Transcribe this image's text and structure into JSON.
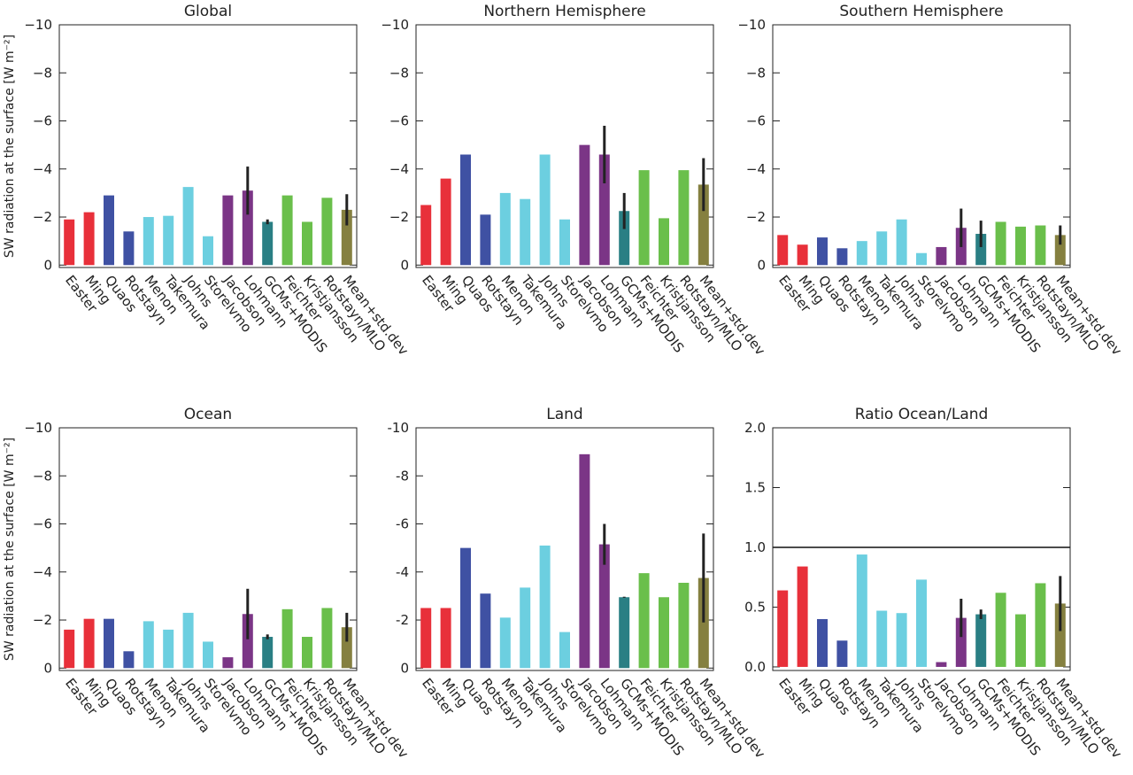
{
  "chart_data": [
    {
      "type": "bar",
      "title": "Global",
      "ylabel": "SW radiation at the surface [W m⁻²]",
      "categories": [
        "Easter",
        "Ming",
        "Quaos",
        "Rotstayn",
        "Menon",
        "Takemura",
        "Johns",
        "Storelvmo",
        "Jacobson",
        "Lohmann",
        "GCMs+MODIS",
        "Feichter",
        "Kristjansson",
        "Rotstayn/MLO",
        "Mean+std.dev"
      ],
      "values": [
        -1.9,
        -2.2,
        -2.9,
        -1.4,
        -2.0,
        -2.05,
        -3.25,
        -1.2,
        -2.9,
        -3.1,
        -1.8,
        -2.9,
        -1.8,
        -2.8,
        -2.3
      ],
      "errors": [
        null,
        null,
        null,
        null,
        null,
        null,
        null,
        null,
        null,
        1.0,
        0.1,
        null,
        null,
        null,
        0.65
      ],
      "colors": [
        "#e8303a",
        "#e8303a",
        "#3f51a3",
        "#3f51a3",
        "#6ccfe0",
        "#6ccfe0",
        "#6ccfe0",
        "#6ccfe0",
        "#7b3586",
        "#7b3586",
        "#2a7f84",
        "#6abf4b",
        "#6abf4b",
        "#6abf4b",
        "#858040"
      ],
      "ylim": [
        0.1,
        -10
      ],
      "yticks": [
        {
          "value": -10,
          "label": "−10"
        },
        {
          "value": -8,
          "label": "−8"
        },
        {
          "value": -6,
          "label": "−6"
        },
        {
          "value": -4,
          "label": "−4"
        },
        {
          "value": -2,
          "label": "−2"
        },
        0
      ]
    },
    {
      "type": "bar",
      "title": "Northern Hemisphere",
      "categories": [
        "Easter",
        "Ming",
        "Quaos",
        "Rotstayn",
        "Menon",
        "Takemura",
        "Johns",
        "Storelvmo",
        "Jacobson",
        "Lohmann",
        "GCMs+MODIS",
        "Feichter",
        "Kristjansson",
        "Rotstayn/MLO",
        "Mean+std.dev"
      ],
      "values": [
        -2.5,
        -3.6,
        -4.6,
        -2.1,
        -3.0,
        -2.75,
        -4.6,
        -1.9,
        -5.0,
        -4.6,
        -2.25,
        -3.95,
        -1.95,
        -3.95,
        -3.35
      ],
      "errors": [
        null,
        null,
        null,
        null,
        null,
        null,
        null,
        null,
        null,
        1.2,
        0.75,
        null,
        null,
        null,
        1.1
      ],
      "colors": [
        "#e8303a",
        "#e8303a",
        "#3f51a3",
        "#3f51a3",
        "#6ccfe0",
        "#6ccfe0",
        "#6ccfe0",
        "#6ccfe0",
        "#7b3586",
        "#7b3586",
        "#2a7f84",
        "#6abf4b",
        "#6abf4b",
        "#6abf4b",
        "#858040"
      ],
      "ylim": [
        0.1,
        -10
      ],
      "yticks": [
        {
          "value": -10,
          "label": "−10"
        },
        {
          "value": -8,
          "label": "−8"
        },
        {
          "value": -6,
          "label": "−6"
        },
        {
          "value": -4,
          "label": "−4"
        },
        {
          "value": -2,
          "label": "−2"
        },
        0
      ]
    },
    {
      "type": "bar",
      "title": "Southern Hemisphere",
      "categories": [
        "Easter",
        "Ming",
        "Quaos",
        "Rotstayn",
        "Menon",
        "Takemura",
        "Johns",
        "Storelvmo",
        "Jacobson",
        "Lohmann",
        "GCMs+MODIS",
        "Feichter",
        "Kristjansson",
        "Rotstayn/MLO",
        "Mean+std.dev"
      ],
      "values": [
        -1.25,
        -0.85,
        -1.15,
        -0.7,
        -1.0,
        -1.4,
        -1.9,
        -0.5,
        -0.75,
        -1.55,
        -1.3,
        -1.8,
        -1.6,
        -1.65,
        -1.25
      ],
      "errors": [
        null,
        null,
        null,
        null,
        null,
        null,
        null,
        null,
        null,
        0.8,
        0.55,
        null,
        null,
        null,
        0.4
      ],
      "colors": [
        "#e8303a",
        "#e8303a",
        "#3f51a3",
        "#3f51a3",
        "#6ccfe0",
        "#6ccfe0",
        "#6ccfe0",
        "#6ccfe0",
        "#7b3586",
        "#7b3586",
        "#2a7f84",
        "#6abf4b",
        "#6abf4b",
        "#6abf4b",
        "#858040"
      ],
      "ylim": [
        0.1,
        -10
      ],
      "yticks": [
        {
          "value": -10,
          "label": "−10"
        },
        {
          "value": -8,
          "label": "−8"
        },
        {
          "value": -6,
          "label": "−6"
        },
        {
          "value": -4,
          "label": "−4"
        },
        {
          "value": -2,
          "label": "−2"
        },
        0
      ]
    },
    {
      "type": "bar",
      "title": "Ocean",
      "ylabel": "SW radiation at the surface [W m⁻²]",
      "categories": [
        "Easter",
        "Ming",
        "Quaos",
        "Rotstayn",
        "Menon",
        "Takemura",
        "Johns",
        "Storelvmo",
        "Jacobson",
        "Lohmann",
        "GCMs+MODIS",
        "Feichter",
        "Kristjansson",
        "Rotstayn/MLO",
        "Mean+std.dev"
      ],
      "values": [
        -1.6,
        -2.05,
        -2.05,
        -0.7,
        -1.95,
        -1.6,
        -2.3,
        -1.1,
        -0.45,
        -2.25,
        -1.3,
        -2.45,
        -1.3,
        -2.5,
        -1.7
      ],
      "errors": [
        null,
        null,
        null,
        null,
        null,
        null,
        null,
        null,
        null,
        1.05,
        0.1,
        null,
        null,
        null,
        0.6
      ],
      "colors": [
        "#e8303a",
        "#e8303a",
        "#3f51a3",
        "#3f51a3",
        "#6ccfe0",
        "#6ccfe0",
        "#6ccfe0",
        "#6ccfe0",
        "#7b3586",
        "#7b3586",
        "#2a7f84",
        "#6abf4b",
        "#6abf4b",
        "#6abf4b",
        "#858040"
      ],
      "ylim": [
        0.1,
        -10
      ],
      "yticks": [
        {
          "value": -10,
          "label": "−10"
        },
        {
          "value": -8,
          "label": "−8"
        },
        {
          "value": -6,
          "label": "−6"
        },
        {
          "value": -4,
          "label": "−4"
        },
        {
          "value": -2,
          "label": "−2"
        },
        0
      ]
    },
    {
      "type": "bar",
      "title": "Land",
      "categories": [
        "Easter",
        "Ming",
        "Quaos",
        "Rotstayn",
        "Menon",
        "Takemura",
        "Johns",
        "Storelvmo",
        "Jacobson",
        "Lohmann",
        "GCMs+MODIS",
        "Feichter",
        "Kristjansson",
        "Rotstayn/MLO",
        "Mean+std.dev"
      ],
      "values": [
        -2.5,
        -2.5,
        -5.0,
        -3.1,
        -2.1,
        -3.35,
        -5.1,
        -1.5,
        -8.9,
        -5.15,
        -2.95,
        -3.95,
        -2.95,
        -3.55,
        -3.75
      ],
      "errors": [
        null,
        null,
        null,
        null,
        null,
        null,
        null,
        null,
        null,
        0.85,
        0.02,
        null,
        null,
        null,
        1.85
      ],
      "colors": [
        "#e8303a",
        "#e8303a",
        "#3f51a3",
        "#3f51a3",
        "#6ccfe0",
        "#6ccfe0",
        "#6ccfe0",
        "#6ccfe0",
        "#7b3586",
        "#7b3586",
        "#2a7f84",
        "#6abf4b",
        "#6abf4b",
        "#6abf4b",
        "#858040"
      ],
      "ylim": [
        0.1,
        -10
      ],
      "yticks": [
        -10,
        -8,
        -6,
        -4,
        -2,
        0
      ]
    },
    {
      "type": "bar",
      "title": "Ratio Ocean/Land",
      "categories": [
        "Easter",
        "Ming",
        "Quaos",
        "Rotstayn",
        "Menon",
        "Takemura",
        "Johns",
        "Storelvmo",
        "Jacobson",
        "Lohmann",
        "GCMs+MODIS",
        "Feichter",
        "Kristjansson",
        "Rotstayn/MLO",
        "Mean+std.dev"
      ],
      "values": [
        0.64,
        0.84,
        0.4,
        0.22,
        0.94,
        0.47,
        0.45,
        0.73,
        0.04,
        0.41,
        0.44,
        0.62,
        0.44,
        0.7,
        0.53
      ],
      "errors": [
        null,
        null,
        null,
        null,
        null,
        null,
        null,
        null,
        null,
        0.16,
        0.04,
        null,
        null,
        null,
        0.23
      ],
      "colors": [
        "#e8303a",
        "#e8303a",
        "#3f51a3",
        "#3f51a3",
        "#6ccfe0",
        "#6ccfe0",
        "#6ccfe0",
        "#6ccfe0",
        "#7b3586",
        "#7b3586",
        "#2a7f84",
        "#6abf4b",
        "#6abf4b",
        "#6abf4b",
        "#858040"
      ],
      "ylim": [
        -0.03,
        2.0
      ],
      "yticks": [
        {
          "value": 0,
          "label": "0.0"
        },
        {
          "value": 0.5,
          "label": "0.5"
        },
        {
          "value": 1,
          "label": "1.0"
        },
        {
          "value": 1.5,
          "label": "1.5"
        },
        {
          "value": 2,
          "label": "2.0"
        }
      ],
      "hline": 1
    }
  ]
}
